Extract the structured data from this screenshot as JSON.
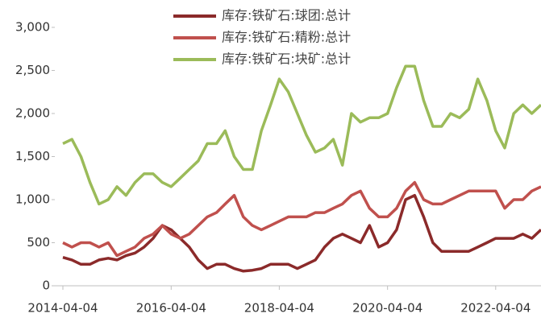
{
  "chart_data": {
    "type": "line",
    "x": [
      "2014-04-04",
      "2014-06-04",
      "2014-08-04",
      "2014-10-04",
      "2014-12-04",
      "2015-02-04",
      "2015-04-04",
      "2015-06-04",
      "2015-08-04",
      "2015-10-04",
      "2015-12-04",
      "2016-02-04",
      "2016-04-04",
      "2016-06-04",
      "2016-08-04",
      "2016-10-04",
      "2016-12-04",
      "2017-02-04",
      "2017-04-04",
      "2017-06-04",
      "2017-08-04",
      "2017-10-04",
      "2017-12-04",
      "2018-02-04",
      "2018-04-04",
      "2018-06-04",
      "2018-08-04",
      "2018-10-04",
      "2018-12-04",
      "2019-02-04",
      "2019-04-04",
      "2019-06-04",
      "2019-08-04",
      "2019-10-04",
      "2019-12-04",
      "2020-02-04",
      "2020-04-04",
      "2020-06-04",
      "2020-08-04",
      "2020-10-04",
      "2020-12-04",
      "2021-02-04",
      "2021-04-04",
      "2021-06-04",
      "2021-08-04",
      "2021-10-04",
      "2021-12-04",
      "2022-02-04",
      "2022-04-04",
      "2022-06-04",
      "2022-08-04",
      "2022-10-04",
      "2022-12-04",
      "2023-02-04"
    ],
    "series": [
      {
        "name": "库存:铁矿石:球团:总计",
        "color": "#8b2a2a",
        "values": [
          330,
          300,
          250,
          250,
          300,
          320,
          300,
          350,
          380,
          450,
          550,
          700,
          650,
          550,
          450,
          300,
          200,
          250,
          250,
          200,
          170,
          180,
          200,
          250,
          250,
          250,
          200,
          250,
          300,
          450,
          550,
          600,
          550,
          500,
          700,
          450,
          500,
          650,
          1000,
          1050,
          800,
          500,
          400,
          400,
          400,
          400,
          450,
          500,
          550,
          550,
          550,
          600,
          550,
          650
        ]
      },
      {
        "name": "库存:铁矿石:精粉:总计",
        "color": "#c0504d",
        "values": [
          500,
          450,
          500,
          500,
          450,
          500,
          350,
          400,
          450,
          550,
          600,
          700,
          600,
          550,
          600,
          700,
          800,
          850,
          950,
          1050,
          800,
          700,
          650,
          700,
          750,
          800,
          800,
          800,
          850,
          850,
          900,
          950,
          1050,
          1100,
          900,
          800,
          800,
          900,
          1100,
          1200,
          1000,
          950,
          950,
          1000,
          1050,
          1100,
          1100,
          1100,
          1100,
          900,
          1000,
          1000,
          1100,
          1150
        ]
      },
      {
        "name": "库存:铁矿石:块矿:总计",
        "color": "#9bbb59",
        "values": [
          1650,
          1700,
          1500,
          1200,
          950,
          1000,
          1150,
          1050,
          1200,
          1300,
          1300,
          1200,
          1150,
          1250,
          1350,
          1450,
          1650,
          1650,
          1800,
          1500,
          1350,
          1350,
          1800,
          2100,
          2400,
          2250,
          2000,
          1750,
          1550,
          1600,
          1700,
          1400,
          2000,
          1900,
          1950,
          1950,
          2000,
          2300,
          2550,
          2550,
          2150,
          1850,
          1850,
          2000,
          1950,
          2050,
          2400,
          2150,
          1800,
          1600,
          2000,
          2100,
          2000,
          2100
        ]
      }
    ],
    "xlim": [
      "2014-04-04",
      "2023-02-04"
    ],
    "xticks": [
      "2014-04-04",
      "2016-04-04",
      "2018-04-04",
      "2020-04-04",
      "2022-04-04"
    ],
    "ylim": [
      0,
      3000
    ],
    "yticks": [
      0,
      500,
      {
        "value": 1000,
        "label": "1,000"
      },
      {
        "value": 1500,
        "label": "1,500"
      },
      {
        "value": 2000,
        "label": "2,000"
      },
      {
        "value": 2500,
        "label": "2,500"
      },
      {
        "value": 3000,
        "label": "3,000"
      }
    ],
    "grid": false,
    "legend": "top"
  }
}
